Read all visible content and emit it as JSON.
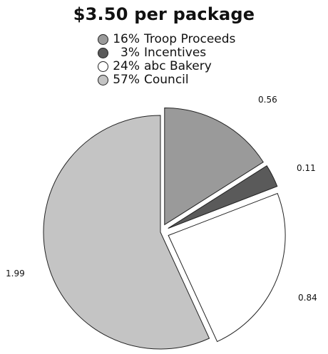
{
  "chart_data": {
    "type": "pie",
    "title": "$3.50 per package",
    "legend_placement": "top",
    "slices": [
      {
        "name": "Troop Proceeds",
        "percent_label": "16%",
        "value": 0.56,
        "value_label": "0.56",
        "color": "#9a9a9a",
        "exploded": true
      },
      {
        "name": "Incentives",
        "percent_label": "3%",
        "value": 0.11,
        "value_label": "0.11",
        "color": "#5a5a5a",
        "exploded": true
      },
      {
        "name": "abc Bakery",
        "percent_label": "24%",
        "value": 0.84,
        "value_label": "0.84",
        "color": "#ffffff",
        "exploded": true
      },
      {
        "name": "Council",
        "percent_label": "57%",
        "value": 1.99,
        "value_label": "1.99",
        "color": "#c4c4c4",
        "exploded": false
      }
    ]
  }
}
